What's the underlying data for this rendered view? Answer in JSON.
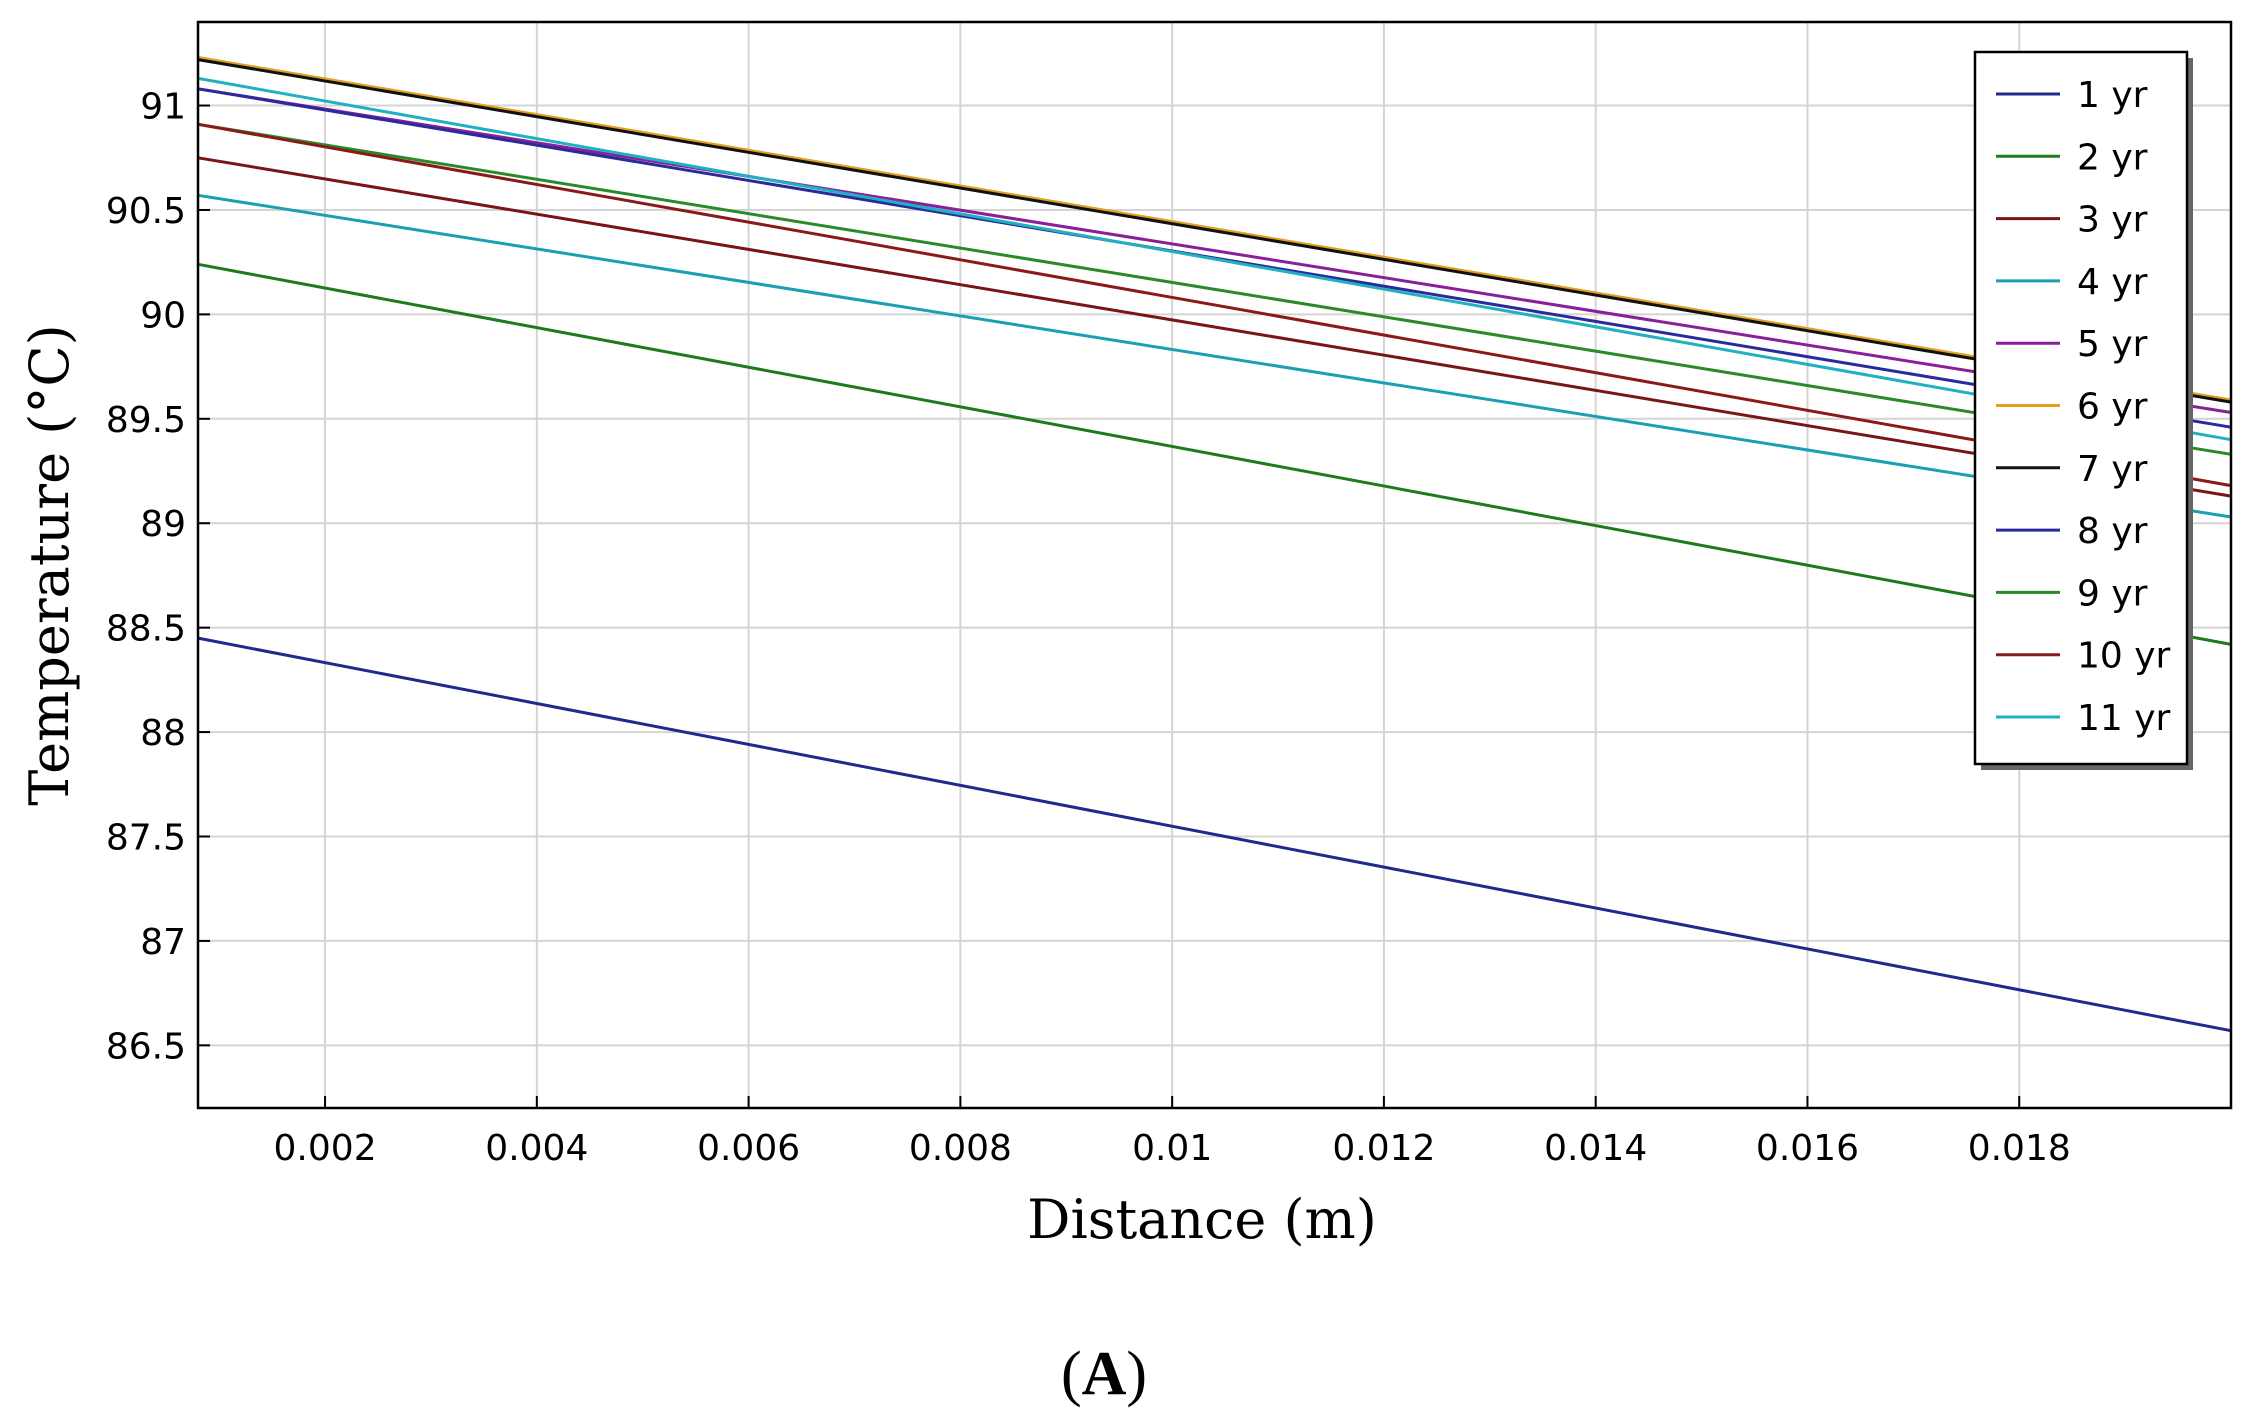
{
  "chart_data": {
    "type": "line",
    "title": "",
    "xlabel": "Distance (m)",
    "ylabel": "Temperature (°C)",
    "xlim": [
      0.0008,
      0.02
    ],
    "ylim": [
      86.2,
      91.4
    ],
    "xticks": [
      0.002,
      0.004,
      0.006,
      0.008,
      0.01,
      0.012,
      0.014,
      0.016,
      0.018
    ],
    "xtick_labels": [
      "0.002",
      "0.004",
      "0.006",
      "0.008",
      "0.01",
      "0.012",
      "0.014",
      "0.016",
      "0.018"
    ],
    "yticks": [
      86.5,
      87,
      87.5,
      88,
      88.5,
      89,
      89.5,
      90,
      90.5,
      91
    ],
    "ytick_labels": [
      "86.5",
      "87",
      "87.5",
      "88",
      "88.5",
      "89",
      "89.5",
      "90",
      "90.5",
      "91"
    ],
    "grid": true,
    "legend_position": "top-right",
    "x": [
      0.0008,
      0.02
    ],
    "series": [
      {
        "name": "1 yr",
        "color": "#1f2a8c",
        "values": [
          88.45,
          86.57
        ]
      },
      {
        "name": "2 yr",
        "color": "#1e7a1e",
        "values": [
          90.24,
          88.42
        ]
      },
      {
        "name": "3 yr",
        "color": "#7a1515",
        "values": [
          90.75,
          89.13
        ]
      },
      {
        "name": "4 yr",
        "color": "#1aa0b0",
        "values": [
          90.57,
          89.03
        ]
      },
      {
        "name": "5 yr",
        "color": "#8a1f9a",
        "values": [
          91.08,
          89.53
        ]
      },
      {
        "name": "6 yr",
        "color": "#e0a020",
        "values": [
          91.23,
          89.59
        ]
      },
      {
        "name": "7 yr",
        "color": "#111111",
        "values": [
          91.22,
          89.58
        ]
      },
      {
        "name": "8 yr",
        "color": "#2a2a9c",
        "values": [
          91.08,
          89.46
        ]
      },
      {
        "name": "9 yr",
        "color": "#2a8a2a",
        "values": [
          90.91,
          89.33
        ]
      },
      {
        "name": "10 yr",
        "color": "#8a1a1a",
        "values": [
          90.91,
          89.18
        ]
      },
      {
        "name": "11 yr",
        "color": "#20b0c0",
        "values": [
          91.13,
          89.4
        ]
      }
    ]
  },
  "panel_label": {
    "open": "(",
    "letter": "A",
    "close": ")"
  }
}
